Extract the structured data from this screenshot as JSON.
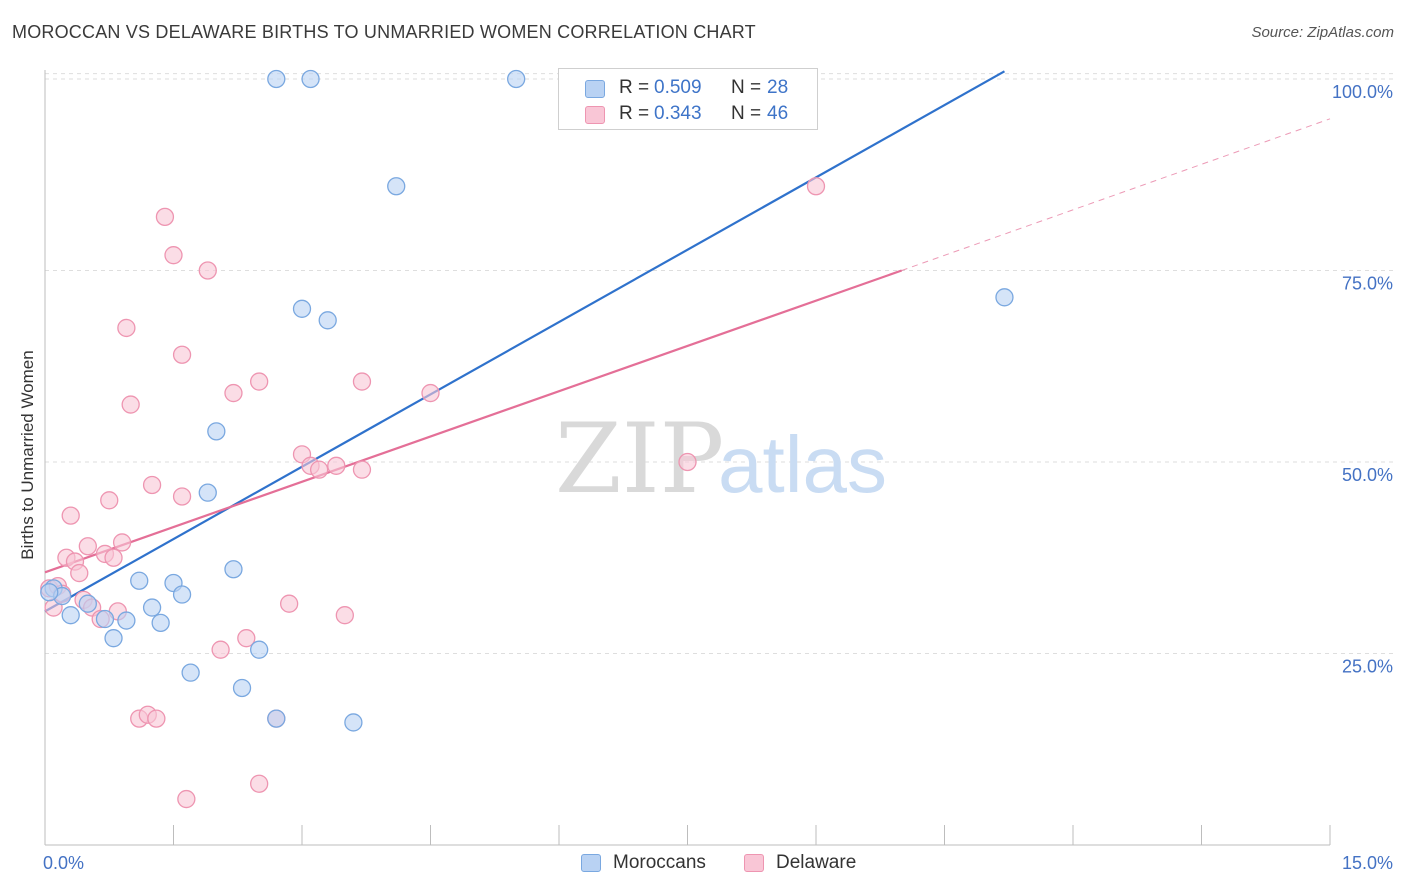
{
  "header": {
    "title": "MOROCCAN VS DELAWARE BIRTHS TO UNMARRIED WOMEN CORRELATION CHART",
    "source": "Source: ZipAtlas.com"
  },
  "watermark": {
    "part1": "ZIP",
    "part2": "atlas"
  },
  "legend_top": [
    {
      "r_label": "R =",
      "r_value": "0.509",
      "n_label": "N =",
      "n_value": "28"
    },
    {
      "r_label": "R =",
      "r_value": "0.343",
      "n_label": "N =",
      "n_value": "46"
    }
  ],
  "legend_bottom": [
    "Moroccans",
    "Delaware"
  ],
  "colors": {
    "blue_fill": "#b9d2f3",
    "blue_stroke": "#7aa8e0",
    "blue_line": "#2f72cc",
    "pink_fill": "#f9c6d6",
    "pink_stroke": "#ee95b1",
    "pink_line": "#e46f97",
    "tick_label": "#4472c4",
    "grid": "#dedede"
  },
  "chart_data": {
    "type": "scatter",
    "title": "MOROCCAN VS DELAWARE BIRTHS TO UNMARRIED WOMEN CORRELATION CHART",
    "xlabel": "",
    "ylabel": "Births to Unmarried Women",
    "xlim": [
      0,
      15
    ],
    "ylim": [
      0,
      101
    ],
    "x_tick_labels": [
      "0.0%",
      "15.0%"
    ],
    "y_ticks": [
      25,
      50,
      75,
      100
    ],
    "y_tick_labels": [
      "25.0%",
      "50.0%",
      "75.0%",
      "100.0%"
    ],
    "grid": true,
    "legend_position": "top-center",
    "series": [
      {
        "name": "Moroccans",
        "r": 0.509,
        "n": 28,
        "trend": {
          "x": [
            0.0,
            11.2
          ],
          "y": [
            30.5,
            101
          ]
        },
        "points": [
          [
            0.1,
            33.5
          ],
          [
            0.2,
            32.5
          ],
          [
            0.3,
            30.0
          ],
          [
            0.5,
            31.5
          ],
          [
            0.7,
            29.5
          ],
          [
            0.8,
            27.0
          ],
          [
            0.95,
            29.3
          ],
          [
            1.1,
            34.5
          ],
          [
            1.25,
            31.0
          ],
          [
            1.35,
            29.0
          ],
          [
            1.5,
            34.2
          ],
          [
            1.6,
            32.7
          ],
          [
            1.7,
            22.5
          ],
          [
            1.9,
            46.0
          ],
          [
            2.0,
            54.0
          ],
          [
            2.2,
            36.0
          ],
          [
            2.3,
            20.5
          ],
          [
            2.5,
            25.5
          ],
          [
            2.7,
            16.5
          ],
          [
            2.7,
            100.0
          ],
          [
            3.0,
            70.0
          ],
          [
            3.1,
            100.0
          ],
          [
            3.3,
            68.5
          ],
          [
            3.6,
            16.0
          ],
          [
            4.1,
            86.0
          ],
          [
            5.5,
            100.0
          ],
          [
            11.2,
            71.5
          ],
          [
            0.05,
            33.0
          ]
        ]
      },
      {
        "name": "Delaware",
        "r": 0.343,
        "n": 46,
        "trend": {
          "x": [
            0.0,
            10.0
          ],
          "y": [
            35.6,
            75.0
          ]
        },
        "trend_dashed": {
          "x": [
            10.0,
            15.0
          ],
          "y": [
            75.0,
            94.8
          ]
        },
        "points": [
          [
            0.05,
            33.5
          ],
          [
            0.1,
            31.0
          ],
          [
            0.15,
            33.8
          ],
          [
            0.2,
            32.8
          ],
          [
            0.25,
            37.5
          ],
          [
            0.3,
            43.0
          ],
          [
            0.35,
            37.0
          ],
          [
            0.4,
            35.5
          ],
          [
            0.45,
            32.0
          ],
          [
            0.5,
            39.0
          ],
          [
            0.55,
            31.0
          ],
          [
            0.65,
            29.5
          ],
          [
            0.7,
            38.0
          ],
          [
            0.75,
            45.0
          ],
          [
            0.8,
            37.5
          ],
          [
            0.85,
            30.5
          ],
          [
            0.9,
            39.5
          ],
          [
            0.95,
            67.5
          ],
          [
            1.0,
            57.5
          ],
          [
            1.1,
            16.5
          ],
          [
            1.2,
            17.0
          ],
          [
            1.25,
            47.0
          ],
          [
            1.3,
            16.5
          ],
          [
            1.4,
            82.0
          ],
          [
            1.5,
            77.0
          ],
          [
            1.6,
            45.5
          ],
          [
            1.6,
            64.0
          ],
          [
            1.65,
            6.0
          ],
          [
            1.9,
            75.0
          ],
          [
            2.05,
            25.5
          ],
          [
            2.2,
            59.0
          ],
          [
            2.35,
            27.0
          ],
          [
            2.5,
            60.5
          ],
          [
            2.5,
            8.0
          ],
          [
            2.7,
            16.5
          ],
          [
            2.85,
            31.5
          ],
          [
            3.0,
            51.0
          ],
          [
            3.1,
            49.5
          ],
          [
            3.2,
            49.0
          ],
          [
            3.4,
            49.5
          ],
          [
            3.5,
            30.0
          ],
          [
            3.7,
            60.5
          ],
          [
            3.7,
            49.0
          ],
          [
            4.5,
            59.0
          ],
          [
            7.5,
            50.0
          ],
          [
            9.0,
            86.0
          ]
        ]
      }
    ]
  }
}
